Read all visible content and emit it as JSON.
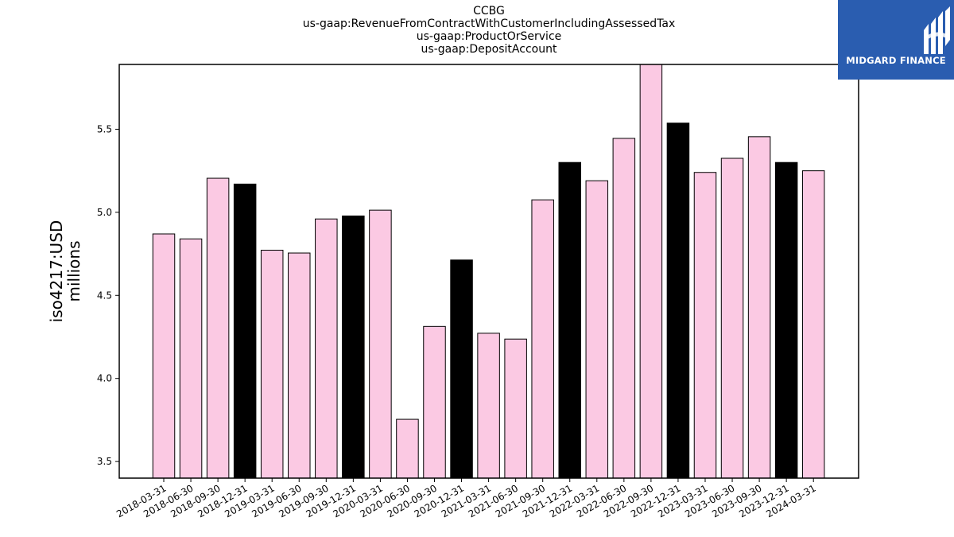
{
  "chart_data": {
    "type": "bar",
    "title_lines": [
      "CCBG",
      "us-gaap:RevenueFromContractWithCustomerIncludingAssessedTax",
      "us-gaap:ProductOrService",
      "us-gaap:DepositAccount"
    ],
    "ylabel_lines": [
      "iso4217:USD",
      "millions"
    ],
    "xlabel": "",
    "categories": [
      "2018-03-31",
      "2018-06-30",
      "2018-09-30",
      "2018-12-31",
      "2019-03-31",
      "2019-06-30",
      "2019-09-30",
      "2019-12-31",
      "2020-03-31",
      "2020-06-30",
      "2020-09-30",
      "2020-12-31",
      "2021-03-31",
      "2021-06-30",
      "2021-09-30",
      "2021-12-31",
      "2022-03-31",
      "2022-06-30",
      "2022-09-30",
      "2022-12-31",
      "2023-03-31",
      "2023-06-30",
      "2023-09-30",
      "2023-12-31",
      "2024-03-31"
    ],
    "values": [
      4.87,
      4.84,
      5.205,
      5.17,
      4.772,
      4.755,
      4.96,
      4.978,
      5.013,
      3.754,
      4.313,
      4.713,
      4.272,
      4.237,
      5.075,
      5.3,
      5.19,
      5.445,
      5.9,
      5.537,
      5.24,
      5.325,
      5.455,
      5.3,
      5.25
    ],
    "highlight": [
      false,
      false,
      false,
      true,
      false,
      false,
      false,
      true,
      false,
      false,
      false,
      true,
      false,
      false,
      false,
      true,
      false,
      false,
      false,
      true,
      false,
      false,
      false,
      true,
      false
    ],
    "ylim": [
      3.4,
      5.89
    ],
    "yticks": [
      3.5,
      4.0,
      4.5,
      5.0,
      5.5
    ],
    "grid": false,
    "colors": {
      "bar": "#fbc9e3",
      "highlight_bar": "#000000",
      "edge": "#000000"
    }
  },
  "logo": {
    "text": "MIDGARD FINANCE",
    "background": "#2a5db0"
  }
}
